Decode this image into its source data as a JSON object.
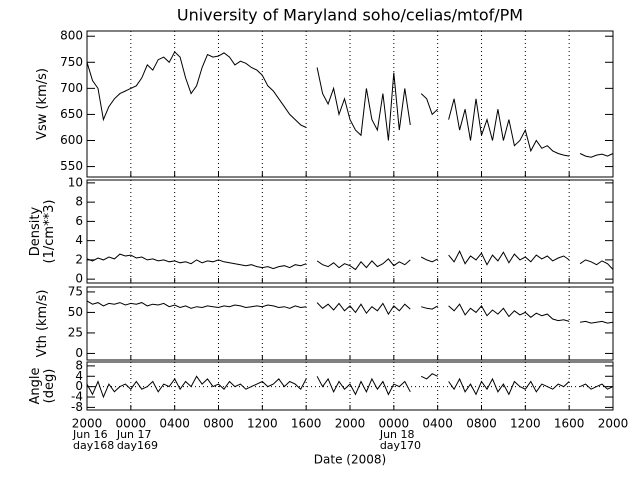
{
  "chart_data": {
    "type": "line",
    "title": "University of Maryland  soho/celias/mtof/PM",
    "xlabel": "Date (2008)",
    "xlim": [
      0,
      48
    ],
    "xticks": [
      {
        "value": 0,
        "label": "2000"
      },
      {
        "value": 4,
        "label": "0000"
      },
      {
        "value": 8,
        "label": "0400"
      },
      {
        "value": 12,
        "label": "0800"
      },
      {
        "value": 16,
        "label": "1200"
      },
      {
        "value": 20,
        "label": "1600"
      },
      {
        "value": 24,
        "label": "2000"
      },
      {
        "value": 28,
        "label": "0000"
      },
      {
        "value": 32,
        "label": "0400"
      },
      {
        "value": 36,
        "label": "0800"
      },
      {
        "value": 40,
        "label": "1200"
      },
      {
        "value": 44,
        "label": "1600"
      },
      {
        "value": 48,
        "label": "2000"
      }
    ],
    "date_labels": [
      {
        "value": 0,
        "label": [
          "Jun 16",
          "day168"
        ]
      },
      {
        "value": 4,
        "label": [
          "Jun 17",
          "day169"
        ]
      },
      {
        "value": 28,
        "label": [
          "Jun 18",
          "day170"
        ]
      }
    ],
    "x": [
      0,
      0.5,
      1,
      1.5,
      2,
      2.5,
      3,
      3.5,
      4,
      4.5,
      5,
      5.5,
      6,
      6.5,
      7,
      7.5,
      8,
      8.5,
      9,
      9.5,
      10,
      10.5,
      11,
      11.5,
      12,
      12.5,
      13,
      13.5,
      14,
      14.5,
      15,
      15.5,
      16,
      16.5,
      17,
      17.5,
      18,
      18.5,
      19,
      19.5,
      20,
      20.5,
      21,
      21.5,
      22,
      22.5,
      23,
      23.5,
      24,
      24.5,
      25,
      25.5,
      26,
      26.5,
      27,
      27.5,
      28,
      28.5,
      29,
      29.5,
      30,
      30.5,
      31,
      31.5,
      32,
      32.5,
      33,
      33.5,
      34,
      34.5,
      35,
      35.5,
      36,
      36.5,
      37,
      37.5,
      38,
      38.5,
      39,
      39.5,
      40,
      40.5,
      41,
      41.5,
      42,
      42.5,
      43,
      43.5,
      44,
      44.5,
      45,
      45.5,
      46,
      46.5,
      47,
      47.5,
      48
    ],
    "panels": [
      {
        "ylabel": [
          "Vsw (km/s)"
        ],
        "ylim": [
          530,
          810
        ],
        "yticks": [
          550,
          600,
          650,
          700,
          750,
          800
        ],
        "values": [
          750,
          715,
          700,
          640,
          665,
          680,
          690,
          695,
          700,
          705,
          720,
          745,
          735,
          755,
          760,
          750,
          770,
          760,
          720,
          690,
          705,
          740,
          765,
          760,
          762,
          768,
          760,
          745,
          752,
          748,
          740,
          735,
          725,
          705,
          695,
          680,
          665,
          650,
          640,
          630,
          625,
          null,
          740,
          690,
          670,
          700,
          650,
          680,
          640,
          620,
          610,
          700,
          640,
          620,
          690,
          600,
          730,
          620,
          700,
          630,
          null,
          690,
          680,
          650,
          660,
          null,
          640,
          680,
          620,
          660,
          600,
          680,
          610,
          640,
          600,
          660,
          600,
          640,
          590,
          600,
          620,
          580,
          600,
          585,
          590,
          580,
          575,
          572,
          570,
          null,
          575,
          570,
          568,
          572,
          574,
          570,
          575
        ]
      },
      {
        "ylabel": [
          "Density",
          "(1/cm**3)"
        ],
        "ylim": [
          -0.4,
          10.3
        ],
        "yticks": [
          0,
          2,
          4,
          6,
          8,
          10
        ],
        "values": [
          2.1,
          1.9,
          2.2,
          2.0,
          2.3,
          2.1,
          2.6,
          2.4,
          2.5,
          2.2,
          2.3,
          2.0,
          2.1,
          1.9,
          2.0,
          1.8,
          1.9,
          1.7,
          1.8,
          1.6,
          2.0,
          1.7,
          1.9,
          1.8,
          2.0,
          1.8,
          1.7,
          1.6,
          1.5,
          1.4,
          1.5,
          1.3,
          1.2,
          1.3,
          1.1,
          1.3,
          1.4,
          1.2,
          1.5,
          1.4,
          1.6,
          null,
          1.9,
          1.5,
          1.3,
          1.7,
          1.2,
          1.6,
          1.4,
          1.0,
          1.8,
          1.2,
          1.9,
          1.3,
          1.6,
          2.1,
          1.4,
          1.8,
          1.5,
          2.0,
          null,
          2.3,
          2.0,
          1.8,
          2.1,
          null,
          2.5,
          1.8,
          2.9,
          1.6,
          2.4,
          2.0,
          2.7,
          1.5,
          2.5,
          1.9,
          2.8,
          1.7,
          2.6,
          2.0,
          2.3,
          1.8,
          2.5,
          2.1,
          2.4,
          1.9,
          2.2,
          2.4,
          2.0,
          null,
          1.6,
          2.0,
          1.8,
          1.5,
          1.9,
          1.6,
          1.0
        ]
      },
      {
        "ylabel": [
          "Vth (km/s)"
        ],
        "ylim": [
          -8,
          81
        ],
        "yticks": [
          0,
          25,
          50,
          75
        ],
        "values": [
          64,
          60,
          62,
          58,
          61,
          60,
          62,
          59,
          61,
          60,
          62,
          58,
          60,
          59,
          61,
          57,
          59,
          56,
          58,
          55,
          57,
          56,
          58,
          57,
          56,
          58,
          57,
          59,
          58,
          56,
          57,
          58,
          57,
          59,
          58,
          56,
          57,
          55,
          58,
          56,
          57,
          null,
          62,
          55,
          60,
          53,
          61,
          52,
          58,
          50,
          60,
          49,
          57,
          52,
          61,
          48,
          58,
          52,
          60,
          54,
          null,
          57,
          55,
          54,
          58,
          null,
          58,
          52,
          60,
          47,
          55,
          50,
          58,
          46,
          53,
          48,
          55,
          45,
          52,
          47,
          50,
          44,
          49,
          46,
          48,
          42,
          40,
          41,
          39,
          null,
          38,
          39,
          37,
          38,
          39,
          37,
          38
        ]
      },
      {
        "ylabel": [
          "Angle",
          "(deg)"
        ],
        "ylim": [
          -9,
          9.5
        ],
        "yticks": [
          -8,
          -4,
          0,
          4,
          8
        ],
        "hline": 0,
        "values": [
          1,
          -3,
          2,
          -4,
          1,
          -2,
          0,
          1,
          -1,
          2,
          -1,
          0,
          2,
          -2,
          1,
          0,
          3,
          -1,
          2,
          0,
          4,
          1,
          3,
          0,
          1,
          -1,
          2,
          0,
          1,
          -1,
          0,
          1,
          2,
          0,
          1,
          3,
          0,
          2,
          1,
          -1,
          3,
          null,
          4,
          0,
          3,
          -2,
          2,
          -1,
          1,
          -3,
          2,
          -2,
          3,
          -1,
          2,
          -3,
          1,
          0,
          2,
          -2,
          null,
          4,
          3,
          5,
          4,
          null,
          2,
          -1,
          3,
          -2,
          1,
          -3,
          2,
          -1,
          3,
          -2,
          1,
          -3,
          2,
          0,
          -1,
          2,
          -2,
          1,
          0,
          -1,
          1,
          0,
          2,
          null,
          0,
          1,
          -1,
          0,
          1,
          -1,
          0
        ]
      }
    ]
  }
}
